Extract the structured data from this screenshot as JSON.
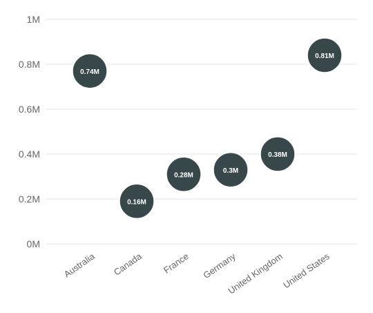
{
  "chart_data": {
    "type": "scatter",
    "title": "",
    "xlabel": "",
    "ylabel": "",
    "ylim": [
      0,
      1
    ],
    "yticks": [
      "0M",
      "0.2M",
      "0.4M",
      "0.6M",
      "0.8M",
      "1M"
    ],
    "categories": [
      "Australia",
      "Canada",
      "France",
      "Germany",
      "United Kingdom",
      "United States"
    ],
    "values": [
      0.77,
      0.19,
      0.31,
      0.33,
      0.4,
      0.84
    ],
    "data_labels": [
      "0.74M",
      "0.16M",
      "0.28M",
      "0.3M",
      "0.38M",
      "0.81M"
    ],
    "grid": true,
    "legend": "none",
    "colors": {
      "bubble": "#37474a",
      "bubble_outline": "#ffffff",
      "grid": "#e6e6e6",
      "text": "#666666"
    }
  }
}
